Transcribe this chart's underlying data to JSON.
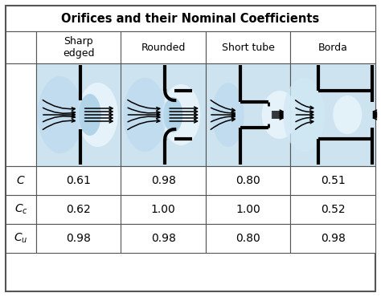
{
  "title": "Orifices and their Nominal Coefficients",
  "col_headers": [
    "",
    "Sharp\nedged",
    "Rounded",
    "Short tube",
    "Borda"
  ],
  "row_labels_display": [
    "$C$",
    "$C_c$",
    "$C_u$"
  ],
  "data": [
    [
      "0.61",
      "0.98",
      "0.80",
      "0.51"
    ],
    [
      "0.62",
      "1.00",
      "1.00",
      "0.52"
    ],
    [
      "0.98",
      "0.98",
      "0.80",
      "0.98"
    ]
  ],
  "bg_color": "#ffffff",
  "flow_blue_light": "#cde3f0",
  "flow_blue_mid": "#9dc8e2",
  "flow_blue_dark": "#6aafd4",
  "border_color": "#555555",
  "title_fontsize": 10.5,
  "header_fontsize": 9,
  "cell_fontsize": 10,
  "label_fontsize": 10
}
